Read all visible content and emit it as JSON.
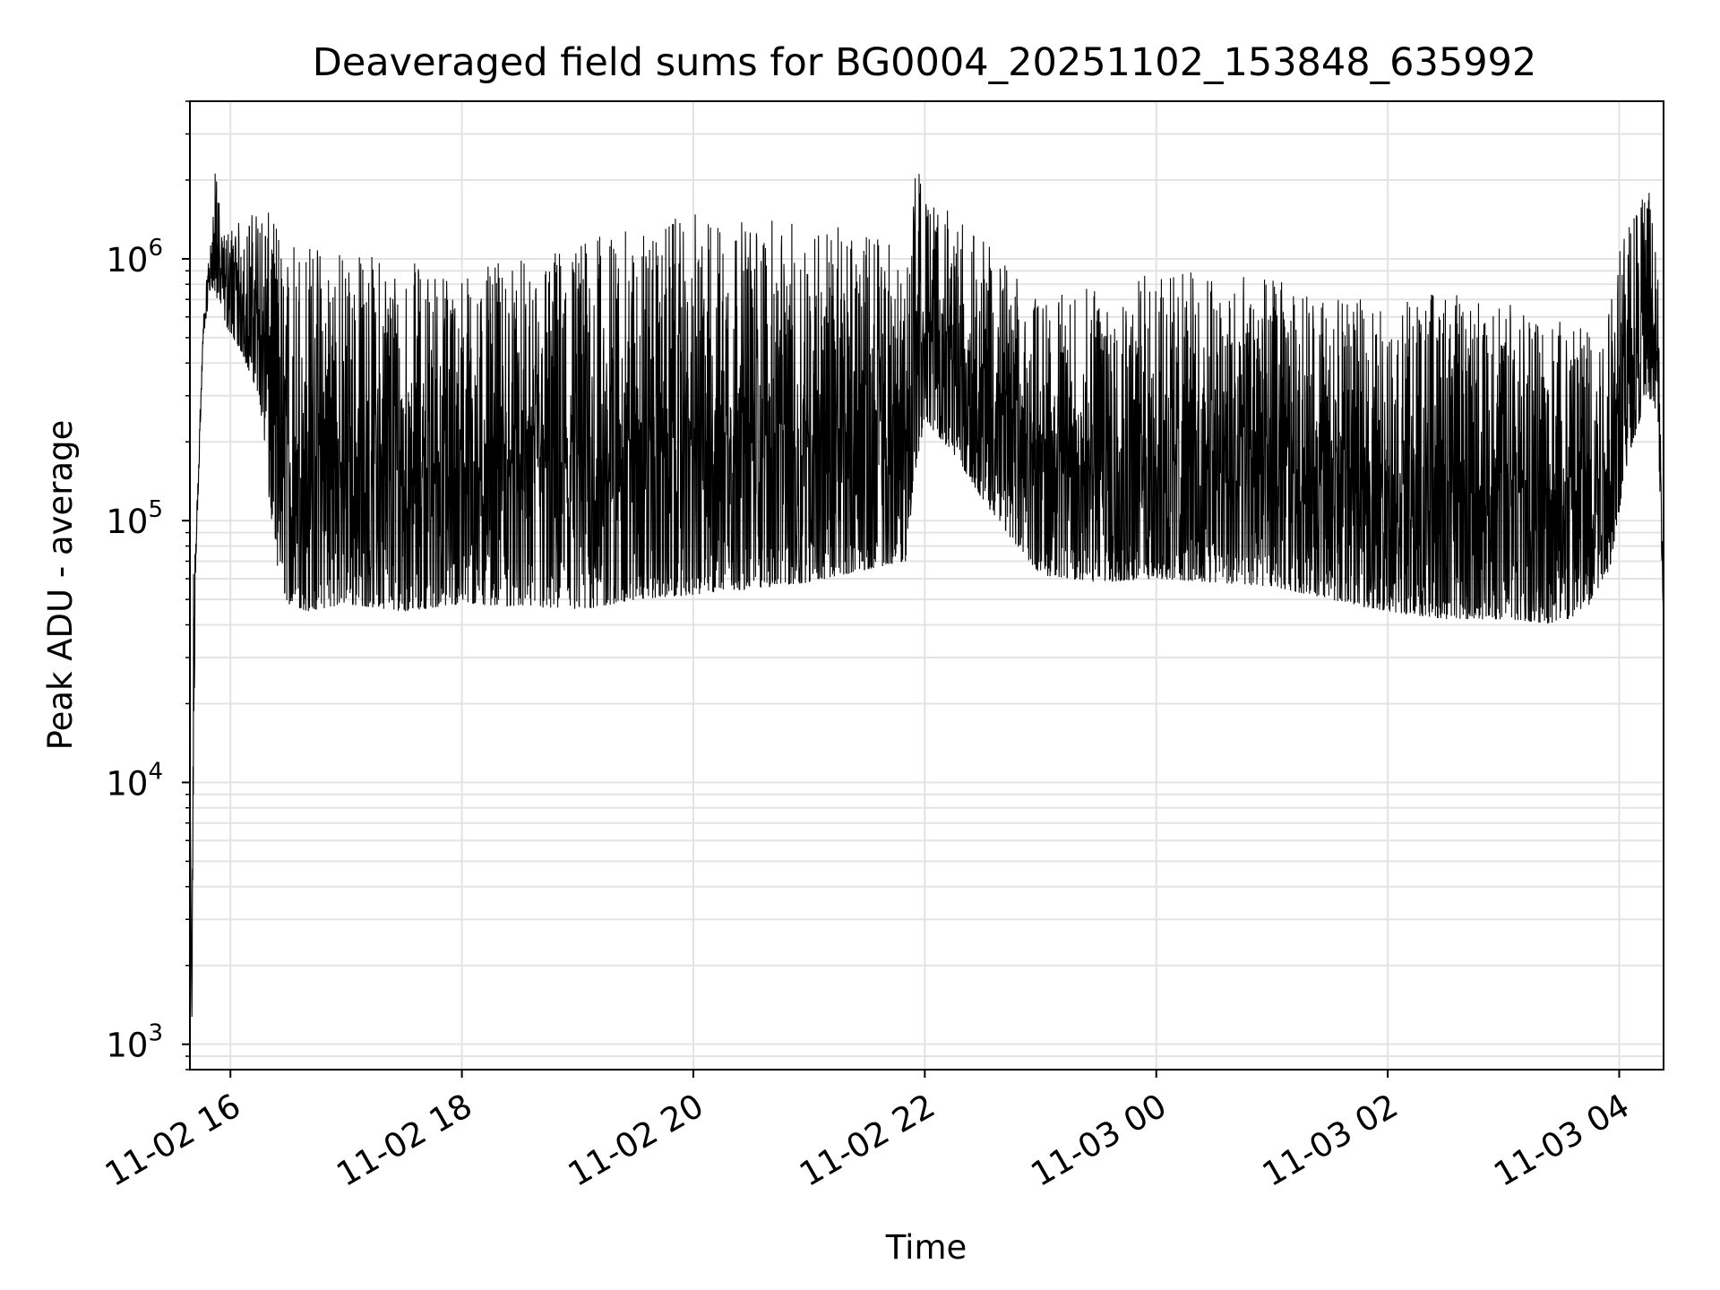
{
  "chart_data": {
    "type": "line",
    "title": "Deaveraged field sums for BG0004_20251102_153848_635992",
    "xlabel": "Time",
    "ylabel": "Peak ADU - average",
    "yscale": "log",
    "ylim": [
      800,
      4000000
    ],
    "xlim": [
      "2025-11-02T15:39:00",
      "2025-11-03T04:23:00"
    ],
    "grid": true,
    "line_color": "#000000",
    "grid_color": "#e3e3e3",
    "x_ticks": [
      {
        "value": "2025-11-02T16:00:00",
        "label": "11-02 16"
      },
      {
        "value": "2025-11-02T18:00:00",
        "label": "11-02 18"
      },
      {
        "value": "2025-11-02T20:00:00",
        "label": "11-02 20"
      },
      {
        "value": "2025-11-02T22:00:00",
        "label": "11-02 22"
      },
      {
        "value": "2025-11-03T00:00:00",
        "label": "11-03 00"
      },
      {
        "value": "2025-11-03T02:00:00",
        "label": "11-03 02"
      },
      {
        "value": "2025-11-03T04:00:00",
        "label": "11-03 04"
      }
    ],
    "y_ticks": [
      {
        "value": 1000,
        "base": "10",
        "exp": "3"
      },
      {
        "value": 10000,
        "base": "10",
        "exp": "4"
      },
      {
        "value": 100000,
        "base": "10",
        "exp": "5"
      },
      {
        "value": 1000000,
        "base": "10",
        "exp": "6"
      }
    ],
    "series": [
      {
        "x": [
          "2025-11-02T15:39:00",
          "2025-11-02T15:40:00",
          "2025-11-02T15:41:00",
          "2025-11-02T15:43:00",
          "2025-11-02T15:46:00",
          "2025-11-02T15:50:00",
          "2025-11-02T15:53:00",
          "2025-11-02T15:55:00",
          "2025-11-02T15:58:00",
          "2025-11-02T16:05:00",
          "2025-11-02T16:15:00",
          "2025-11-02T16:20:00",
          "2025-11-02T16:25:00",
          "2025-11-02T16:30:00",
          "2025-11-02T16:40:00",
          "2025-11-02T17:00:00",
          "2025-11-02T17:30:00",
          "2025-11-02T18:00:00",
          "2025-11-02T18:30:00",
          "2025-11-02T19:00:00",
          "2025-11-02T19:30:00",
          "2025-11-02T20:00:00",
          "2025-11-02T20:30:00",
          "2025-11-02T21:00:00",
          "2025-11-02T21:30:00",
          "2025-11-02T21:50:00",
          "2025-11-02T21:55:00",
          "2025-11-02T22:00:00",
          "2025-11-02T22:15:00",
          "2025-11-02T22:30:00",
          "2025-11-02T22:45:00",
          "2025-11-02T23:00:00",
          "2025-11-02T23:30:00",
          "2025-11-03T00:00:00",
          "2025-11-03T00:30:00",
          "2025-11-03T01:00:00",
          "2025-11-03T01:30:00",
          "2025-11-03T02:00:00",
          "2025-11-03T02:30:00",
          "2025-11-03T03:00:00",
          "2025-11-03T03:30:00",
          "2025-11-03T03:45:00",
          "2025-11-03T03:55:00",
          "2025-11-03T04:05:00",
          "2025-11-03T04:15:00",
          "2025-11-03T04:20:00",
          "2025-11-03T04:23:00"
        ],
        "y_low": [
          13000,
          1150,
          15000,
          110000,
          500000,
          800000,
          700000,
          650000,
          550000,
          450000,
          300000,
          120000,
          60000,
          48000,
          45000,
          48000,
          45000,
          48000,
          47000,
          45000,
          50000,
          52000,
          55000,
          58000,
          65000,
          70000,
          150000,
          240000,
          180000,
          120000,
          85000,
          62000,
          58000,
          60000,
          58000,
          56000,
          50000,
          45000,
          42000,
          42000,
          40000,
          48000,
          65000,
          180000,
          300000,
          250000,
          40000
        ],
        "y_high": [
          13000,
          1150,
          110000,
          160000,
          600000,
          1300000,
          2700000,
          1200000,
          1300000,
          1400000,
          1600000,
          1500000,
          1400000,
          1300000,
          1200000,
          1100000,
          1000000,
          900000,
          1000000,
          1200000,
          1300000,
          1500000,
          1400000,
          1400000,
          1300000,
          1200000,
          2400000,
          1800000,
          1500000,
          1200000,
          900000,
          700000,
          800000,
          900000,
          900000,
          850000,
          700000,
          700000,
          750000,
          700000,
          650000,
          700000,
          900000,
          1400000,
          2100000,
          900000,
          40000
        ]
      }
    ]
  }
}
